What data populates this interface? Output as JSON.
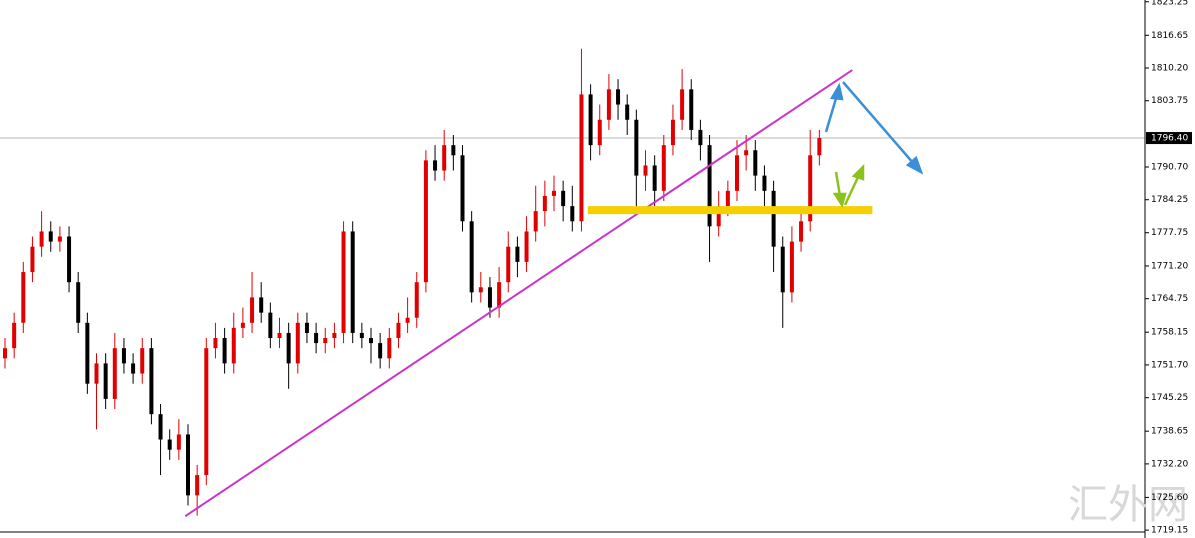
{
  "chart_data": {
    "type": "candlestick",
    "ylim": [
      1717.6,
      1823.6
    ],
    "yticks": [
      1823.25,
      {
        "value": 1816.65,
        "label": "1816.65"
      },
      {
        "value": 1810.2,
        "label": "1810.20"
      },
      1803.75,
      {
        "value": 1790.7,
        "label": "1790.70"
      },
      1784.25,
      1777.75,
      {
        "value": 1771.2,
        "label": "1771.20"
      },
      1764.75,
      1758.15,
      {
        "value": 1751.7,
        "label": "1751.70"
      },
      1745.25,
      1738.65,
      {
        "value": 1732.2,
        "label": "1732.20"
      },
      {
        "value": 1725.6,
        "label": "1725.60"
      },
      1719.15
    ],
    "current_price": {
      "value": 1796.4,
      "label": "1796.40"
    },
    "up_color": "#e00000",
    "down_color": "#000000",
    "open": [
      1753,
      1755,
      1760,
      1770,
      1775,
      1778,
      1776,
      1777,
      1768,
      1760,
      1748,
      1752,
      1745,
      1755,
      1752,
      1750,
      1755,
      1742,
      1737,
      1735,
      1738,
      1726,
      1730,
      1755,
      1757,
      1752,
      1759,
      1760,
      1765,
      1762,
      1757,
      1758,
      1752,
      1760,
      1758,
      1756,
      1757,
      1758,
      1778,
      1758,
      1757,
      1756,
      1753,
      1757,
      1760,
      1761,
      1768,
      1792,
      1790,
      1795,
      1793,
      1780,
      1766,
      1767,
      1763,
      1768,
      1775,
      1772,
      1778,
      1782,
      1785,
      1786,
      1783,
      1780,
      1805,
      1795,
      1800,
      1806,
      1803,
      1800,
      1789,
      1791,
      1786,
      1795,
      1800,
      1806,
      1798,
      1795,
      1779,
      1783,
      1786,
      1793,
      1794,
      1789,
      1786,
      1775,
      1766,
      1776,
      1780,
      1793
    ],
    "high": [
      1757,
      1762,
      1772,
      1777,
      1782,
      1780,
      1779,
      1779,
      1770,
      1762,
      1754,
      1754,
      1758,
      1757,
      1754,
      1757,
      1757,
      1744,
      1739,
      1741,
      1740,
      1732,
      1757,
      1760,
      1759,
      1762,
      1763,
      1770,
      1768,
      1764,
      1761,
      1760,
      1762,
      1762,
      1760,
      1759,
      1760,
      1780,
      1780,
      1760,
      1759,
      1758,
      1759,
      1762,
      1765,
      1770,
      1794,
      1795,
      1798,
      1797,
      1795,
      1782,
      1770,
      1769,
      1771,
      1778,
      1777,
      1781,
      1787,
      1788,
      1789,
      1788,
      1787,
      1814,
      1807,
      1803,
      1809,
      1808,
      1805,
      1802,
      1794,
      1793,
      1797,
      1803,
      1810,
      1808,
      1800,
      1797,
      1786,
      1788,
      1796,
      1797,
      1796,
      1791,
      1788,
      1777,
      1779,
      1783,
      1798,
      1798
    ],
    "low": [
      1751,
      1753,
      1758,
      1768,
      1773,
      1774,
      1774,
      1766,
      1758,
      1746,
      1739,
      1743,
      1743,
      1750,
      1748,
      1748,
      1740,
      1730,
      1733,
      1733,
      1724,
      1722,
      1728,
      1753,
      1750,
      1750,
      1757,
      1758,
      1760,
      1755,
      1755,
      1747,
      1750,
      1756,
      1754,
      1754,
      1755,
      1756,
      1756,
      1755,
      1752,
      1751,
      1751,
      1755,
      1758,
      1759,
      1766,
      1788,
      1788,
      1790,
      1778,
      1764,
      1764,
      1761,
      1761,
      1766,
      1769,
      1770,
      1776,
      1779,
      1782,
      1780,
      1778,
      1778,
      1792,
      1793,
      1798,
      1800,
      1797,
      1782,
      1786,
      1783,
      1784,
      1793,
      1798,
      1796,
      1792,
      1772,
      1777,
      1781,
      1784,
      1790,
      1786,
      1783,
      1770,
      1759,
      1764,
      1774,
      1778,
      1791
    ],
    "close": [
      1755,
      1760,
      1770,
      1775,
      1778,
      1776,
      1777,
      1768,
      1760,
      1748,
      1752,
      1745,
      1755,
      1752,
      1750,
      1755,
      1742,
      1737,
      1735,
      1738,
      1726,
      1730,
      1755,
      1757,
      1752,
      1759,
      1760,
      1765,
      1762,
      1757,
      1758,
      1752,
      1760,
      1758,
      1756,
      1757,
      1758,
      1778,
      1758,
      1757,
      1756,
      1753,
      1757,
      1760,
      1761,
      1768,
      1792,
      1790,
      1795,
      1793,
      1780,
      1766,
      1767,
      1763,
      1768,
      1775,
      1772,
      1778,
      1782,
      1785,
      1786,
      1783,
      1780,
      1805,
      1795,
      1800,
      1806,
      1803,
      1800,
      1789,
      1791,
      1786,
      1795,
      1800,
      1806,
      1798,
      1795,
      1779,
      1783,
      1786,
      1793,
      1794,
      1789,
      1786,
      1775,
      1766,
      1776,
      1780,
      1793,
      1796.4
    ],
    "trendline": {
      "from": [
        19.7,
        1721.9
      ],
      "to": [
        92.6,
        1809.8
      ],
      "color": "#cc33cc"
    },
    "support": {
      "from": 63.7,
      "to": 94.8,
      "value": 1782.2,
      "color": "#f5d000"
    },
    "watermark": "汇外网"
  }
}
